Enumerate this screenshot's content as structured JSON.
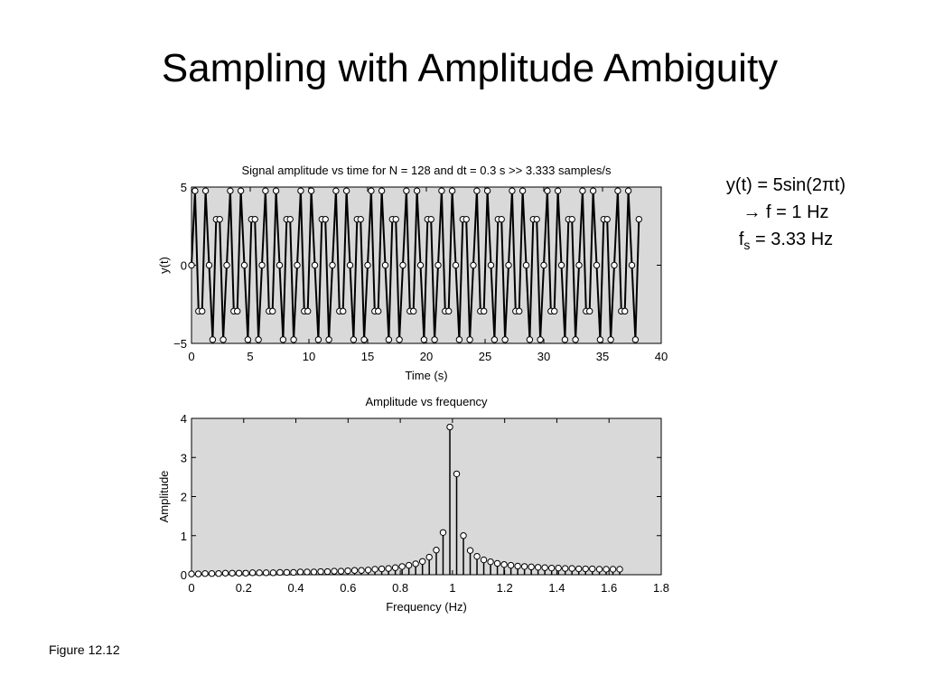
{
  "slide_title": "Sampling with Amplitude Ambiguity",
  "note": {
    "line1": "y(t) = 5sin(2πt)",
    "line2": "→ f = 1 Hz",
    "line3_f": "f",
    "line3_sub": "s",
    "line3_rest": " = 3.33 Hz"
  },
  "footer": "Figure 12.12",
  "chart_data": [
    {
      "type": "line",
      "title": "Signal amplitude vs time for N = 128 and dt = 0.3 s >> 3.333 samples/s",
      "x_label": "Time (s)",
      "y_label": "y(t)",
      "xlim": [
        0,
        40
      ],
      "xticks": [
        0,
        5,
        10,
        15,
        20,
        25,
        30,
        35,
        40
      ],
      "ylim": [
        -5,
        5
      ],
      "yticks": [
        {
          "value": -5,
          "label": "−5"
        },
        0,
        5
      ],
      "background": "#d9d9d9",
      "color": "#000000",
      "x": [
        0,
        0.3,
        0.6,
        0.9,
        1.2,
        1.5,
        1.8,
        2.1,
        2.4,
        2.7,
        3,
        3.3,
        3.6,
        3.9,
        4.2,
        4.5,
        4.8,
        5.1,
        5.4,
        5.7,
        6,
        6.3,
        6.6,
        6.9,
        7.2,
        7.5,
        7.8,
        8.1,
        8.4,
        8.7,
        9,
        9.3,
        9.6,
        9.9,
        10.2,
        10.5,
        10.8,
        11.1,
        11.4,
        11.7,
        12,
        12.3,
        12.6,
        12.9,
        13.2,
        13.5,
        13.8,
        14.1,
        14.4,
        14.7,
        15,
        15.3,
        15.6,
        15.9,
        16.2,
        16.5,
        16.8,
        17.1,
        17.4,
        17.7,
        18,
        18.3,
        18.6,
        18.9,
        19.2,
        19.5,
        19.8,
        20.1,
        20.4,
        20.7,
        21,
        21.3,
        21.6,
        21.9,
        22.2,
        22.5,
        22.8,
        23.1,
        23.4,
        23.7,
        24,
        24.3,
        24.6,
        24.9,
        25.2,
        25.5,
        25.8,
        26.1,
        26.4,
        26.7,
        27,
        27.3,
        27.6,
        27.9,
        28.2,
        28.5,
        28.8,
        29.1,
        29.4,
        29.7,
        30,
        30.3,
        30.6,
        30.9,
        31.2,
        31.5,
        31.8,
        32.1,
        32.4,
        32.7,
        33,
        33.3,
        33.6,
        33.9,
        34.2,
        34.5,
        34.8,
        35.1,
        35.4,
        35.7,
        36,
        36.3,
        36.6,
        36.9,
        37.2,
        37.5,
        37.8,
        38.1
      ],
      "values": [
        0,
        4.76,
        -2.94,
        -2.94,
        4.76,
        0,
        -4.76,
        2.94,
        2.94,
        -4.76,
        0,
        4.76,
        -2.94,
        -2.94,
        4.76,
        0,
        -4.76,
        2.94,
        2.94,
        -4.76,
        0,
        4.76,
        -2.94,
        -2.94,
        4.76,
        0,
        -4.76,
        2.94,
        2.94,
        -4.76,
        0,
        4.76,
        -2.94,
        -2.94,
        4.76,
        0,
        -4.76,
        2.94,
        2.94,
        -4.76,
        0,
        4.76,
        -2.94,
        -2.94,
        4.76,
        0,
        -4.76,
        2.94,
        2.94,
        -4.76,
        0,
        4.76,
        -2.94,
        -2.94,
        4.76,
        0,
        -4.76,
        2.94,
        2.94,
        -4.76,
        0,
        4.76,
        -2.94,
        -2.94,
        4.76,
        0,
        -4.76,
        2.94,
        2.94,
        -4.76,
        0,
        4.76,
        -2.94,
        -2.94,
        4.76,
        0,
        -4.76,
        2.94,
        2.94,
        -4.76,
        0,
        4.76,
        -2.94,
        -2.94,
        4.76,
        0,
        -4.76,
        2.94,
        2.94,
        -4.76,
        0,
        4.76,
        -2.94,
        -2.94,
        4.76,
        0,
        -4.76,
        2.94,
        2.94,
        -4.76,
        0,
        4.76,
        -2.94,
        -2.94,
        4.76,
        0,
        -4.76,
        2.94,
        2.94,
        -4.76,
        0,
        4.76,
        -2.94,
        -2.94,
        4.76,
        0,
        -4.76,
        2.94,
        2.94,
        -4.76,
        0,
        4.76,
        -2.94,
        -2.94,
        4.76,
        0,
        -4.76,
        2.94
      ]
    },
    {
      "type": "stem",
      "title": "Amplitude vs frequency",
      "x_label": "Frequency (Hz)",
      "y_label": "Amplitude",
      "xlim": [
        0,
        1.8
      ],
      "xticks": [
        0,
        0.2,
        0.4,
        0.6,
        0.8,
        1,
        1.2,
        1.4,
        1.6,
        1.8
      ],
      "ylim": [
        0,
        4
      ],
      "yticks": [
        0,
        1,
        2,
        3,
        4
      ],
      "background": "#d9d9d9",
      "color": "#000000",
      "x": [
        0,
        0.026,
        0.052,
        0.078,
        0.104,
        0.13,
        0.156,
        0.182,
        0.208,
        0.234,
        0.26,
        0.286,
        0.313,
        0.339,
        0.365,
        0.391,
        0.417,
        0.443,
        0.469,
        0.495,
        0.521,
        0.547,
        0.573,
        0.599,
        0.625,
        0.651,
        0.677,
        0.703,
        0.729,
        0.755,
        0.781,
        0.807,
        0.833,
        0.859,
        0.885,
        0.911,
        0.938,
        0.964,
        0.99,
        1.016,
        1.042,
        1.068,
        1.094,
        1.12,
        1.146,
        1.172,
        1.198,
        1.224,
        1.25,
        1.276,
        1.302,
        1.328,
        1.354,
        1.38,
        1.406,
        1.432,
        1.458,
        1.484,
        1.51,
        1.536,
        1.563,
        1.589,
        1.615,
        1.641
      ],
      "values": [
        0.02,
        0.02,
        0.03,
        0.03,
        0.03,
        0.04,
        0.04,
        0.04,
        0.04,
        0.05,
        0.05,
        0.05,
        0.05,
        0.06,
        0.06,
        0.06,
        0.07,
        0.07,
        0.07,
        0.08,
        0.08,
        0.09,
        0.09,
        0.1,
        0.11,
        0.11,
        0.12,
        0.14,
        0.15,
        0.16,
        0.18,
        0.21,
        0.24,
        0.28,
        0.34,
        0.45,
        0.63,
        1.08,
        3.78,
        2.58,
        1.0,
        0.62,
        0.47,
        0.38,
        0.33,
        0.29,
        0.26,
        0.24,
        0.22,
        0.21,
        0.2,
        0.19,
        0.18,
        0.17,
        0.17,
        0.16,
        0.16,
        0.15,
        0.15,
        0.15,
        0.14,
        0.14,
        0.14,
        0.14
      ]
    }
  ]
}
